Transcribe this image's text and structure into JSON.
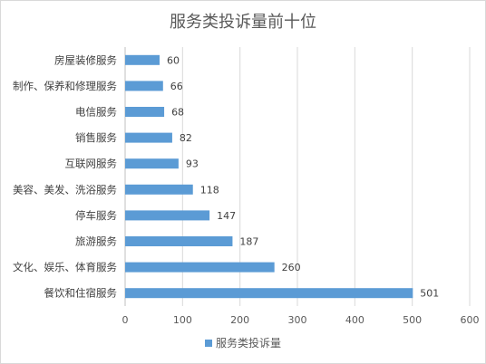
{
  "chart_data": {
    "type": "bar",
    "orientation": "horizontal",
    "title": "服务类投诉量前十位",
    "categories": [
      "房屋装修服务",
      "制作、保养和修理服务",
      "电信服务",
      "销售服务",
      "互联网服务",
      "美容、美发、洗浴服务",
      "停车服务",
      "旅游服务",
      "文化、娱乐、体育服务",
      "餐饮和住宿服务"
    ],
    "series": [
      {
        "name": "服务类投诉量",
        "values": [
          60,
          66,
          68,
          82,
          93,
          118,
          147,
          187,
          260,
          501
        ]
      }
    ],
    "xlim": [
      0,
      600
    ],
    "xticks": [
      0,
      100,
      200,
      300,
      400,
      500,
      600
    ],
    "grid": "vertical",
    "data_labels": true,
    "legend_position": "bottom",
    "colors": {
      "bar": "#5b9bd5",
      "grid": "#d9d9d9",
      "axis": "#bfbfbf"
    }
  }
}
